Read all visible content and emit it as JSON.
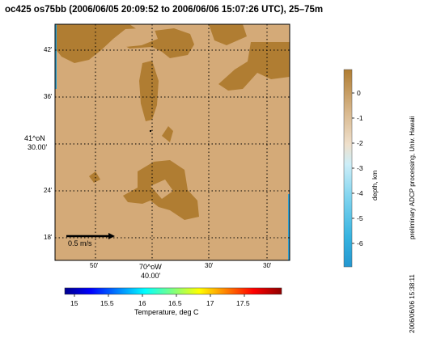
{
  "title": "oc425 os75bb (2006/06/05 20:09:52 to 2006/06/06 15:07:26 UTC), 25–75m",
  "map": {
    "lat_ticks": [
      "42'",
      "36'",
      "24'",
      "18'"
    ],
    "lat_center_label_line1": "41^oN",
    "lat_center_label_line2": "30.00'",
    "lon_ticks": [
      "50'",
      "30'",
      "30'"
    ],
    "lon_center_label_line1": "70^oW",
    "lon_center_label_line2": "40.00'",
    "scale_vector_label": "0.5 m/s",
    "colors": {
      "land_light": "#d4aa78",
      "land_dark": "#b07d32",
      "water_edge": "#2a9fd0",
      "grid": "#000000"
    }
  },
  "depth_colorbar": {
    "label": "depth, km",
    "ticks": [
      "0",
      "-1",
      "-2",
      "-3",
      "-4",
      "-5",
      "-6"
    ],
    "colors": [
      "#b07d32",
      "#d9b98f",
      "#efe0cc",
      "#cdeef8",
      "#7fd4ef",
      "#36b3e0",
      "#2497d0"
    ]
  },
  "temperature_colorbar": {
    "label": "Temperature, deg C",
    "ticks": [
      "15",
      "15.5",
      "16",
      "16.5",
      "17",
      "17.5"
    ]
  },
  "credit_text": "preliminary ADCP processing,  Univ. Hawaii",
  "timestamp_text": "2006/06/06 15:38:11"
}
